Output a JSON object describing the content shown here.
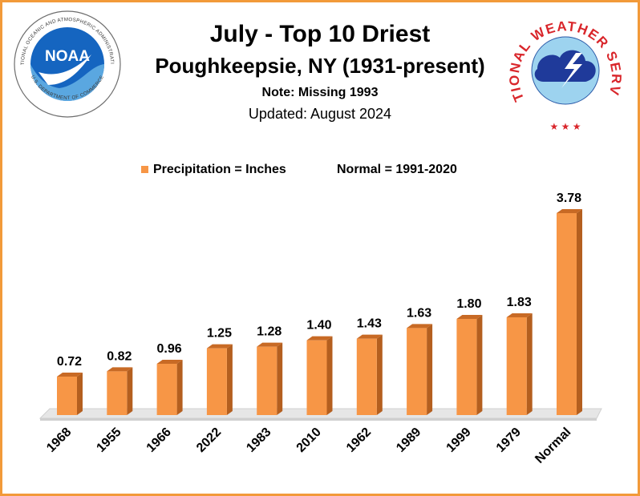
{
  "header": {
    "title": "July - Top 10 Driest",
    "subtitle": "Poughkeepsie, NY (1931-present)",
    "note": "Note: Missing 1993",
    "updated": "Updated: August 2024"
  },
  "logos": {
    "noaa_text": "NOAA",
    "noaa_ring_text": "NATIONAL OCEANIC AND ATMOSPHERIC ADMINISTRATION",
    "noaa_bottom_text": "U.S. DEPARTMENT OF COMMERCE",
    "nws_ring_text": "NATIONAL WEATHER SERVICE"
  },
  "legend": {
    "series_label": "Precipitation = Inches",
    "normal_note": "Normal = 1991-2020"
  },
  "colors": {
    "frame": "#f29a3a",
    "bar_front": "#f79646",
    "bar_top": "#c86a25",
    "bar_side": "#b45f1f",
    "floor": "#e6e6e6"
  },
  "chart_data": {
    "type": "bar",
    "categories": [
      "1968",
      "1955",
      "1966",
      "2022",
      "1983",
      "2010",
      "1962",
      "1989",
      "1999",
      "1979",
      "Normal"
    ],
    "values": [
      0.72,
      0.82,
      0.96,
      1.25,
      1.28,
      1.4,
      1.43,
      1.63,
      1.8,
      1.83,
      3.78
    ],
    "data_labels": [
      "0.72",
      "0.82",
      "0.96",
      "1.25",
      "1.28",
      "1.40",
      "1.43",
      "1.63",
      "1.80",
      "1.83",
      "3.78"
    ],
    "title": "July - Top 10 Driest",
    "xlabel": "",
    "ylabel": "",
    "ylim": [
      0,
      3.78
    ],
    "grid": false,
    "legend_position": "top",
    "style": "3d-bar"
  }
}
